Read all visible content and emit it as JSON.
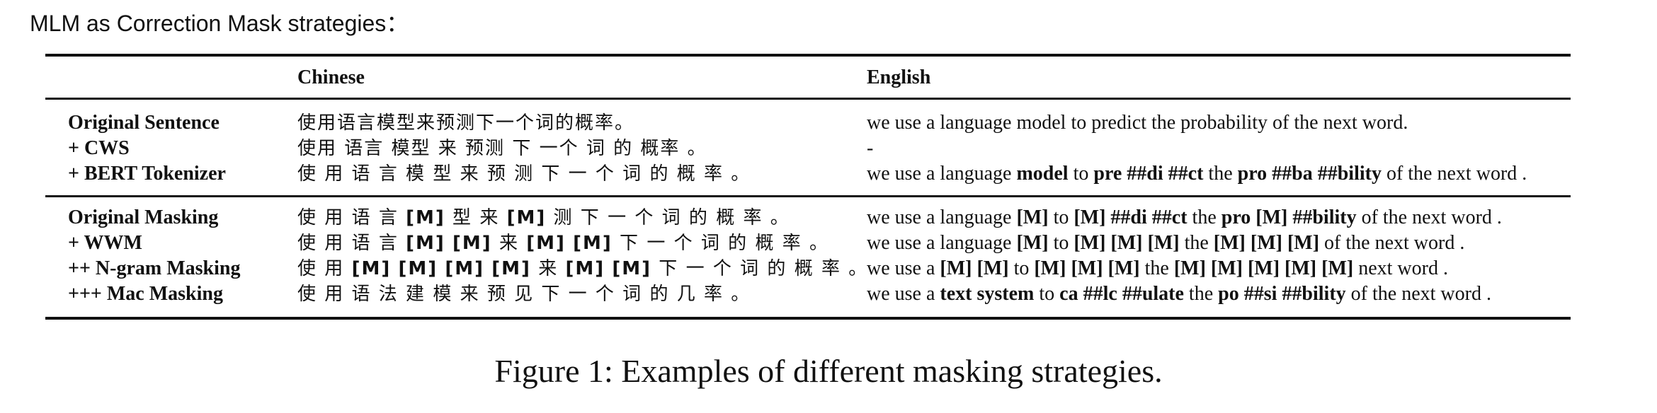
{
  "page_header": "MLM as Correction Mask strategies：",
  "table": {
    "headers": {
      "label": "",
      "chinese": "Chinese",
      "english": "English"
    },
    "group1": [
      {
        "label": "Original Sentence",
        "zh": "使用语言模型来预测下一个词的概率。",
        "en": "we use a language model to predict the probability of the next word."
      },
      {
        "label": "+ CWS",
        "zh": "使用 语言 模型 来 预测 下 一个 词 的 概率 。",
        "en": "-"
      },
      {
        "label": "+ BERT Tokenizer",
        "zh": "使 用 语 言 模 型 来 预 测 下 一 个 词 的 概 率 。",
        "en": "we use a language model to pre ##di ##ct the pro ##ba ##bility of the next word ."
      }
    ],
    "group2": [
      {
        "label": "Original Masking",
        "zh": "使 用 语 言 [M] 型 来 [M] 测 下 一 个 词 的 概 率 。",
        "en": "we use a language [M] to [M] ##di ##ct the pro [M] ##bility of the next word ."
      },
      {
        "label": "+ WWM",
        "zh": "使 用 语 言 [M] [M] 来 [M] [M] 下 一 个 词 的 概 率 。",
        "en": "we use a language [M] to [M] [M] [M] the [M] [M] [M] of the next word ."
      },
      {
        "label": "++ N-gram Masking",
        "zh": "使 用 [M] [M] [M] [M] 来 [M] [M] 下 一 个 词 的 概 率 。",
        "en": "we use a [M] [M] to [M] [M] [M] the [M] [M] [M] [M] [M] next word ."
      },
      {
        "label": "+++ Mac Masking",
        "zh": "使 用 语 法 建 模 来 预 见 下 一 个 词 的 几 率 。",
        "en": "we use a text system to ca ##lc ##ulate the po ##si ##bility of the next word ."
      }
    ]
  },
  "caption": "Figure 1:  Examples of different masking strategies."
}
